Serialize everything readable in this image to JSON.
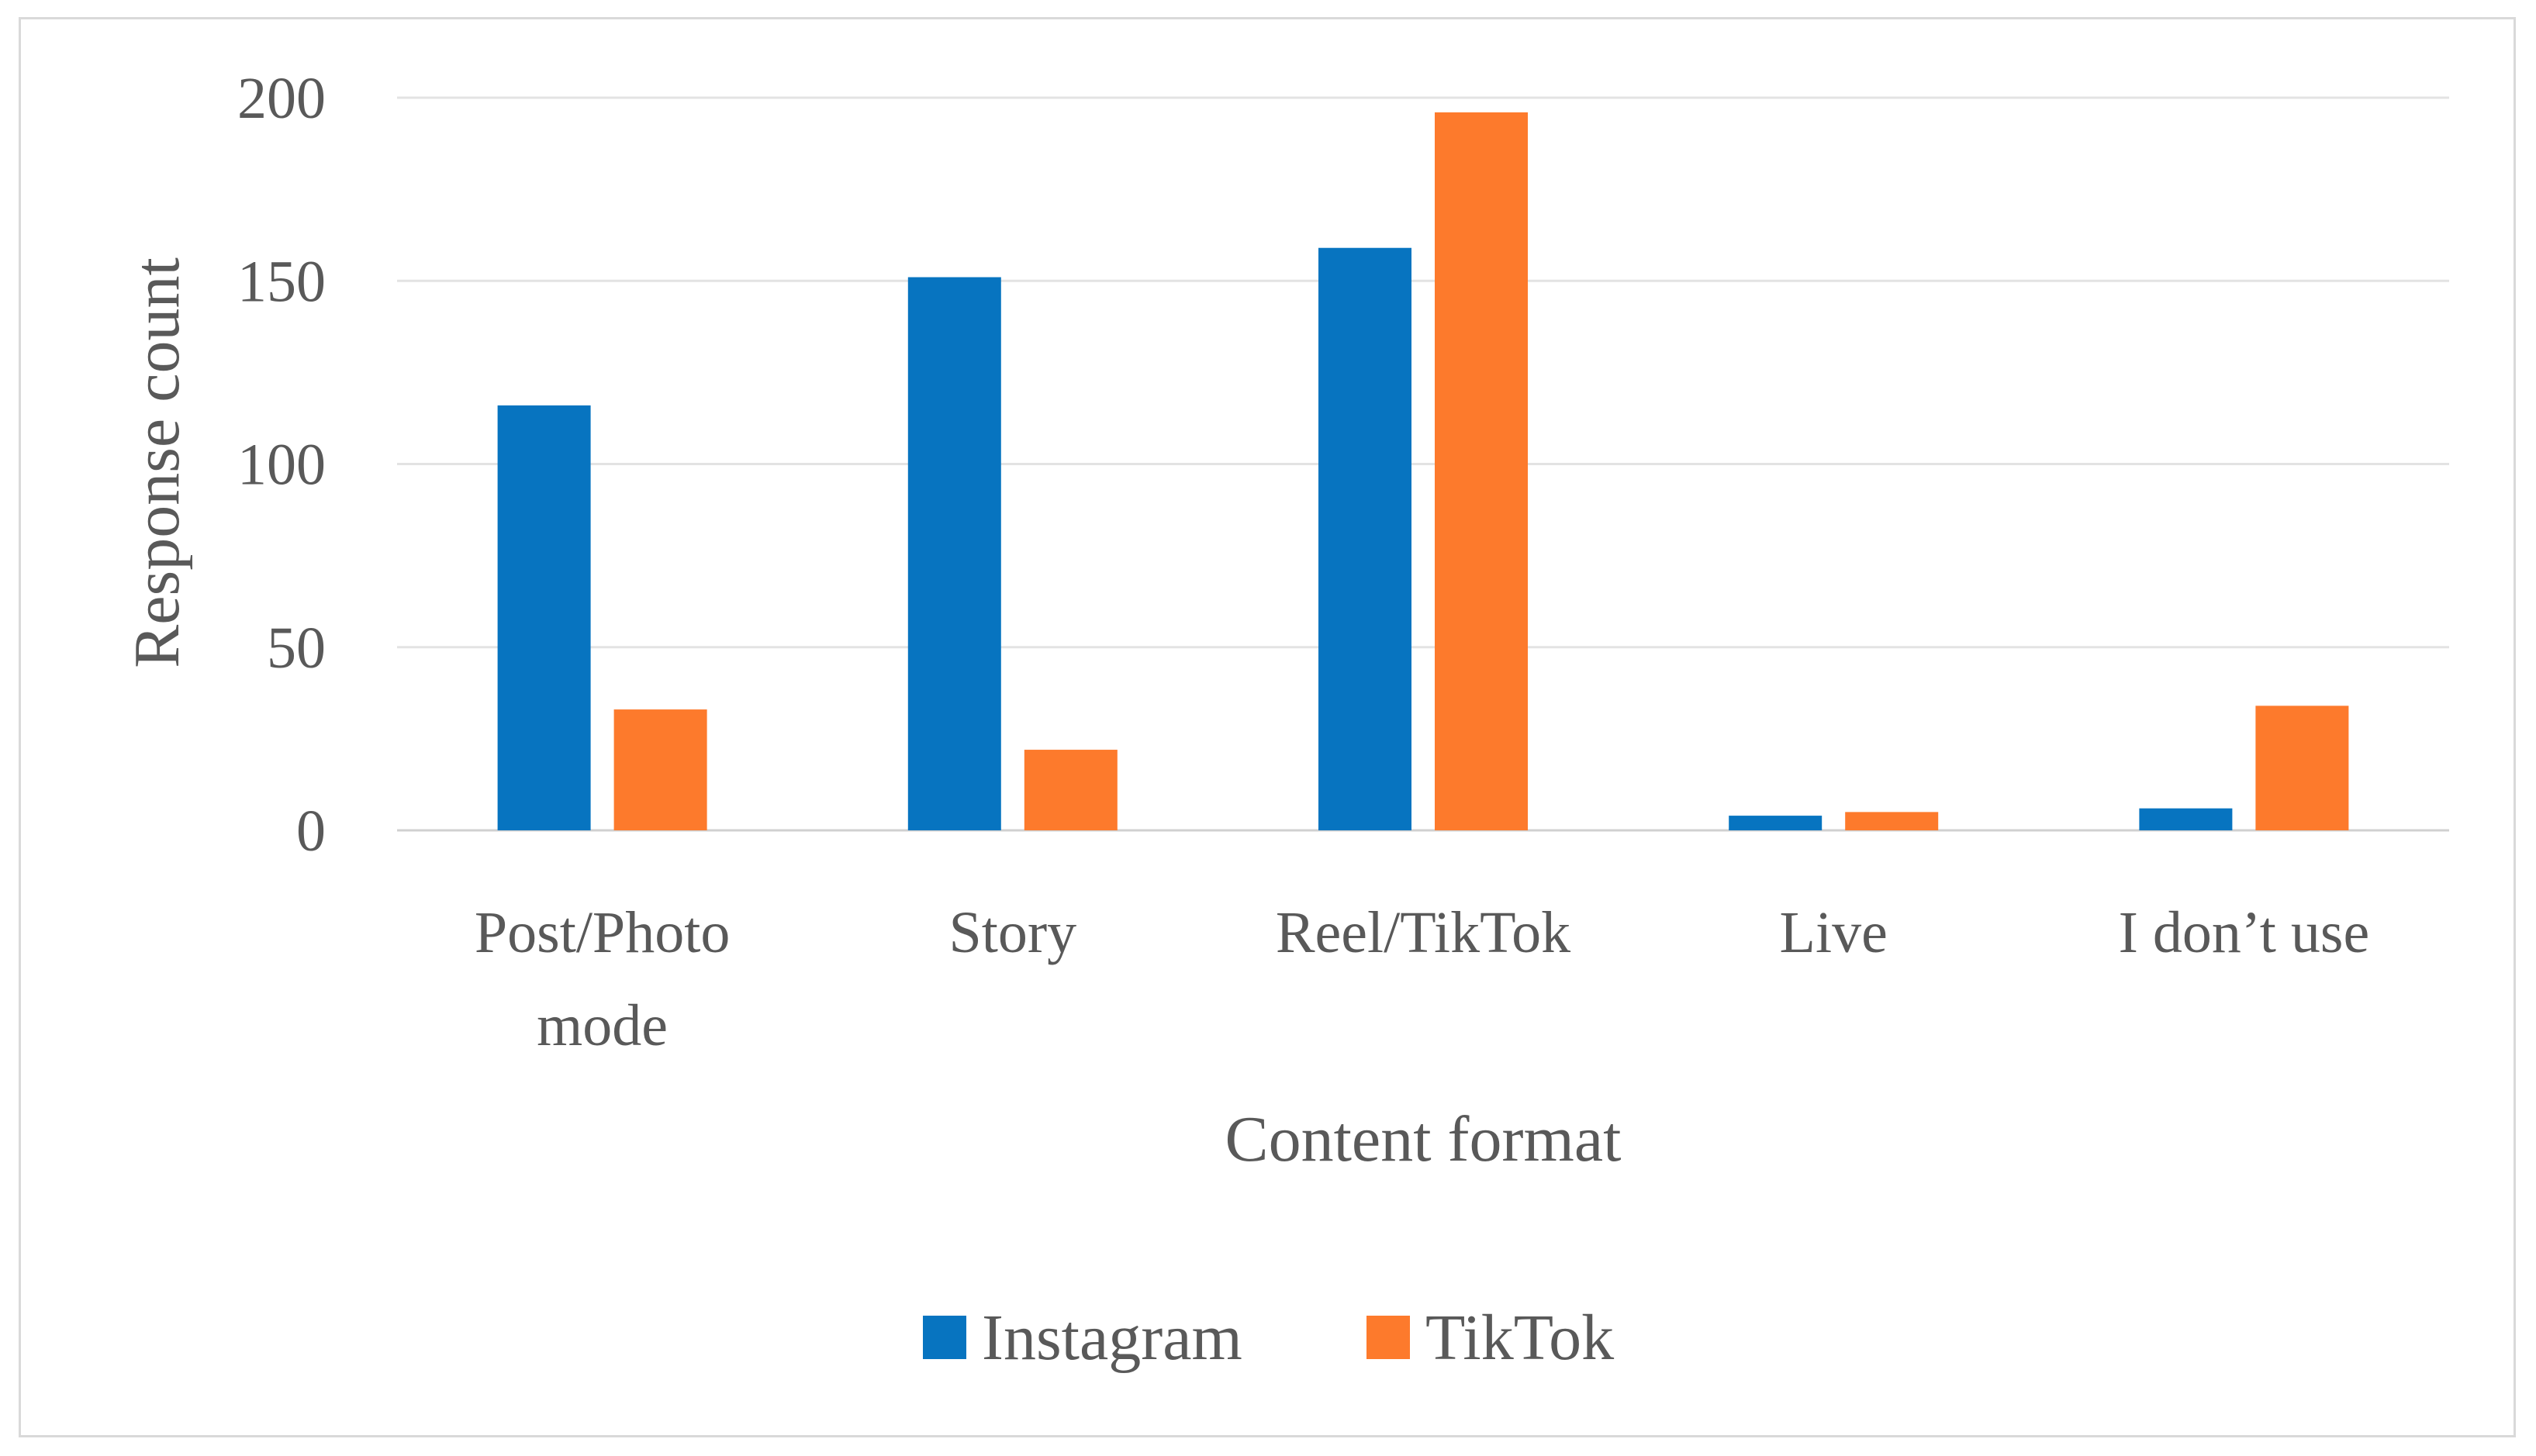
{
  "chart_data": {
    "type": "bar",
    "categories": [
      [
        "Post/Photo",
        "mode"
      ],
      [
        "Story"
      ],
      [
        "Reel/TikTok"
      ],
      [
        "Live"
      ],
      [
        "I don’t use"
      ]
    ],
    "series": [
      {
        "name": "Instagram",
        "color": "#0774c0",
        "values": [
          116,
          151,
          159,
          4,
          6
        ]
      },
      {
        "name": "TikTok",
        "color": "#fd7a2c",
        "values": [
          33,
          22,
          196,
          5,
          34
        ]
      }
    ],
    "xlabel": "Content format",
    "ylabel": "Response count",
    "ylim": [
      0,
      200
    ],
    "yticks": [
      "0",
      "50",
      "100",
      "150",
      "200"
    ],
    "grid": true,
    "legend": "bottom"
  }
}
